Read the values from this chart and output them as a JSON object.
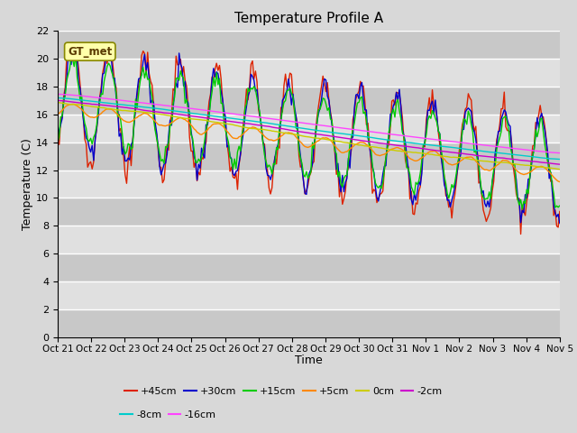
{
  "title": "Temperature Profile A",
  "xlabel": "Time",
  "ylabel": "Temperature (C)",
  "ylim": [
    0,
    22
  ],
  "yticks": [
    0,
    2,
    4,
    6,
    8,
    10,
    12,
    14,
    16,
    18,
    20,
    22
  ],
  "bg_color": "#d8d8d8",
  "plot_bg_color": "#d8d8d8",
  "grid_color": "#ffffff",
  "annotation_text": "GT_met",
  "annotation_box_color": "#ffffaa",
  "annotation_border_color": "#888800",
  "series": [
    {
      "label": "+45cm",
      "color": "#dd2200"
    },
    {
      "label": "+30cm",
      "color": "#0000cc"
    },
    {
      "label": "+15cm",
      "color": "#00cc00"
    },
    {
      "label": "+5cm",
      "color": "#ff8800"
    },
    {
      "label": "0cm",
      "color": "#cccc00"
    },
    {
      "label": "-2cm",
      "color": "#cc00cc"
    },
    {
      "label": "-8cm",
      "color": "#00cccc"
    },
    {
      "label": "-16cm",
      "color": "#ff44ff"
    }
  ],
  "xtick_labels": [
    "Oct 21",
    "Oct 22",
    "Oct 23",
    "Oct 24",
    "Oct 25",
    "Oct 26",
    "Oct 27",
    "Oct 28",
    "Oct 29",
    "Oct 30",
    "Oct 31",
    "Nov 1",
    "Nov 2",
    "Nov 3",
    "Nov 4",
    "Nov 5"
  ],
  "n_points": 336,
  "legend_ncol_row1": 6,
  "legend_ncol_row2": 2
}
